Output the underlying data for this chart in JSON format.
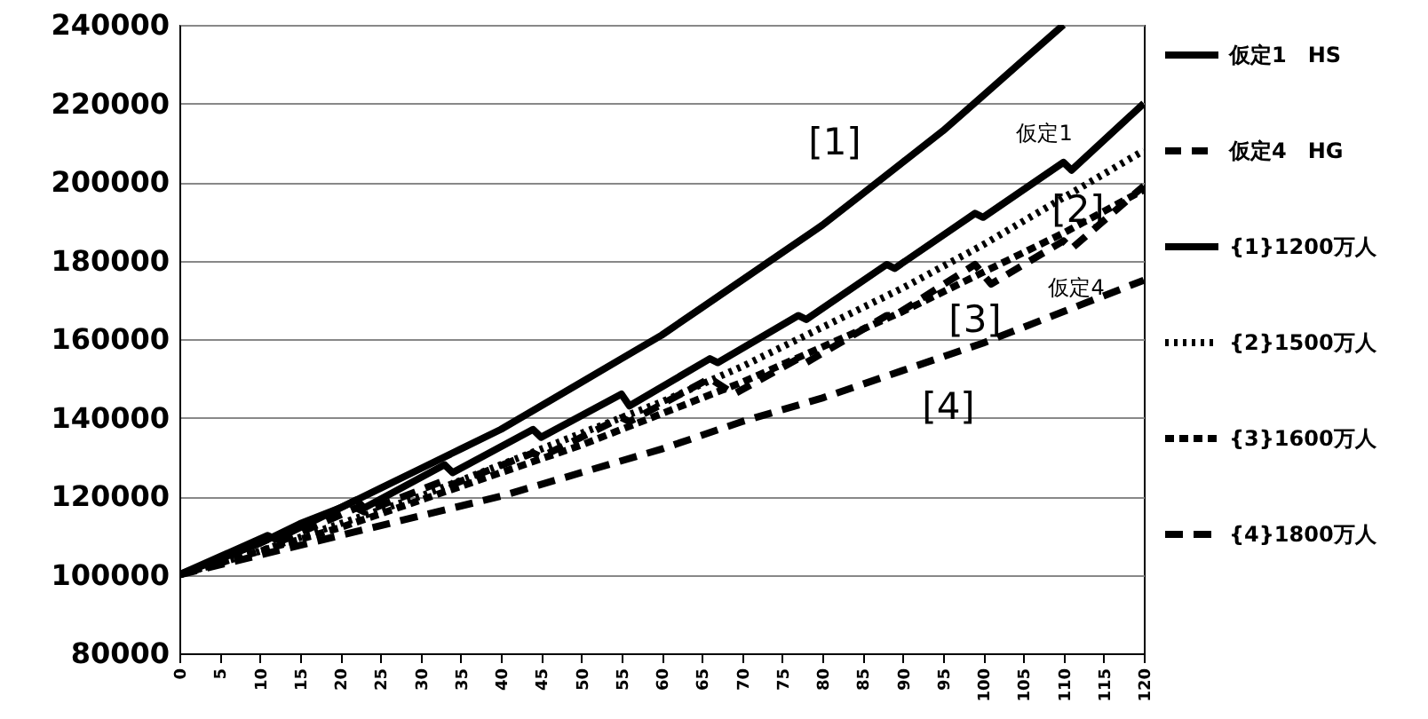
{
  "chart_data": {
    "type": "line",
    "xlim": [
      0,
      120
    ],
    "ylim": [
      80000,
      240000
    ],
    "xticks": [
      0,
      5,
      10,
      15,
      20,
      25,
      30,
      35,
      40,
      45,
      50,
      55,
      60,
      65,
      70,
      75,
      80,
      85,
      90,
      95,
      100,
      105,
      110,
      115,
      120
    ],
    "yticks": [
      80000,
      100000,
      120000,
      140000,
      160000,
      180000,
      200000,
      220000,
      240000
    ],
    "grid": "y",
    "legend": "right",
    "series": [
      {
        "name": "仮定1　HS",
        "color": "#000000",
        "line_style": "solid",
        "x": [
          0,
          11,
          12,
          22,
          23,
          33,
          34,
          44,
          45,
          55,
          56,
          66,
          67,
          77,
          78,
          88,
          89,
          99,
          100,
          110,
          111,
          120
        ],
        "values": [
          100000,
          110000,
          109000,
          119000,
          117000,
          128000,
          126000,
          137000,
          135000,
          146000,
          143000,
          155000,
          154000,
          166000,
          165000,
          179000,
          178000,
          192000,
          191000,
          205000,
          203000,
          220000
        ]
      },
      {
        "name": "仮定4　HG",
        "color": "#000000",
        "line_style": "dashed",
        "x": [
          0,
          11,
          12,
          22,
          23,
          33,
          34,
          44,
          45,
          55,
          56,
          66,
          69,
          77,
          78,
          88,
          89,
          99,
          101,
          110,
          111,
          120
        ],
        "values": [
          100000,
          109000,
          108000,
          117000,
          116000,
          124000,
          123000,
          131000,
          130000,
          140000,
          139000,
          150000,
          146000,
          155000,
          154000,
          166000,
          166000,
          179000,
          174000,
          185000,
          183000,
          199000
        ]
      },
      {
        "name": "{1}1200万人",
        "color": "#000000",
        "line_style": "solid",
        "x": [
          0,
          5,
          10,
          15,
          20,
          25,
          30,
          35,
          40,
          45,
          50,
          55,
          60,
          65,
          70,
          75,
          80,
          85,
          90,
          95,
          100,
          105,
          110
        ],
        "values": [
          100000,
          104000,
          108000,
          113000,
          117000,
          122000,
          127000,
          132000,
          137000,
          143000,
          149000,
          155000,
          161000,
          168000,
          175000,
          182000,
          189000,
          197000,
          205000,
          213000,
          222000,
          231000,
          240000
        ]
      },
      {
        "name": "{2}1500万人",
        "color": "#000000",
        "line_style": "dotted",
        "x": [
          0,
          10,
          20,
          30,
          40,
          50,
          60,
          70,
          80,
          90,
          100,
          110,
          120
        ],
        "values": [
          100000,
          106000,
          113000,
          120000,
          128000,
          136000,
          144000,
          153000,
          163000,
          173000,
          184000,
          196000,
          208000
        ]
      },
      {
        "name": "{3}1600万人",
        "color": "#000000",
        "line_style": "dashed",
        "x": [
          0,
          10,
          20,
          30,
          40,
          50,
          60,
          70,
          80,
          90,
          100,
          110,
          120
        ],
        "values": [
          100000,
          106000,
          112000,
          119000,
          126000,
          133000,
          141000,
          149000,
          158000,
          167000,
          177000,
          187000,
          198000
        ]
      },
      {
        "name": "{4}1800万人",
        "color": "#000000",
        "line_style": "dashed",
        "x": [
          0,
          10,
          20,
          30,
          40,
          50,
          60,
          70,
          80,
          90,
          100,
          110,
          120
        ],
        "values": [
          100000,
          105000,
          110000,
          115000,
          120000,
          126000,
          132000,
          139000,
          145000,
          152000,
          159000,
          167000,
          175000
        ]
      }
    ],
    "annotations": [
      "[1]",
      "[2]",
      "[3]",
      "[4]",
      "仮定1",
      "仮定4"
    ]
  }
}
